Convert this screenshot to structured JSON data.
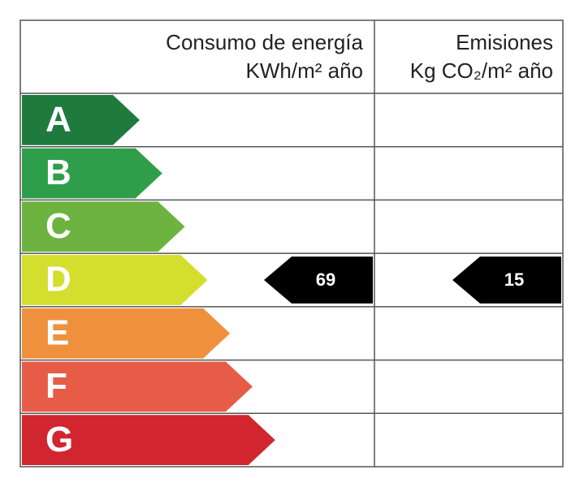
{
  "header": {
    "energy": {
      "title": "Consumo de energía",
      "unit": "KWh/m² año"
    },
    "emissions": {
      "title": "Emisiones",
      "unit": "Kg CO₂/m² año"
    }
  },
  "ratings": [
    {
      "letter": "A",
      "color": "#1f7a3d"
    },
    {
      "letter": "B",
      "color": "#2f9e4a"
    },
    {
      "letter": "C",
      "color": "#6cb33f"
    },
    {
      "letter": "D",
      "color": "#d4de2c",
      "energy": 69,
      "emissions": 15
    },
    {
      "letter": "E",
      "color": "#ef913c"
    },
    {
      "letter": "F",
      "color": "#e65c47"
    },
    {
      "letter": "G",
      "color": "#d1262f"
    }
  ]
}
